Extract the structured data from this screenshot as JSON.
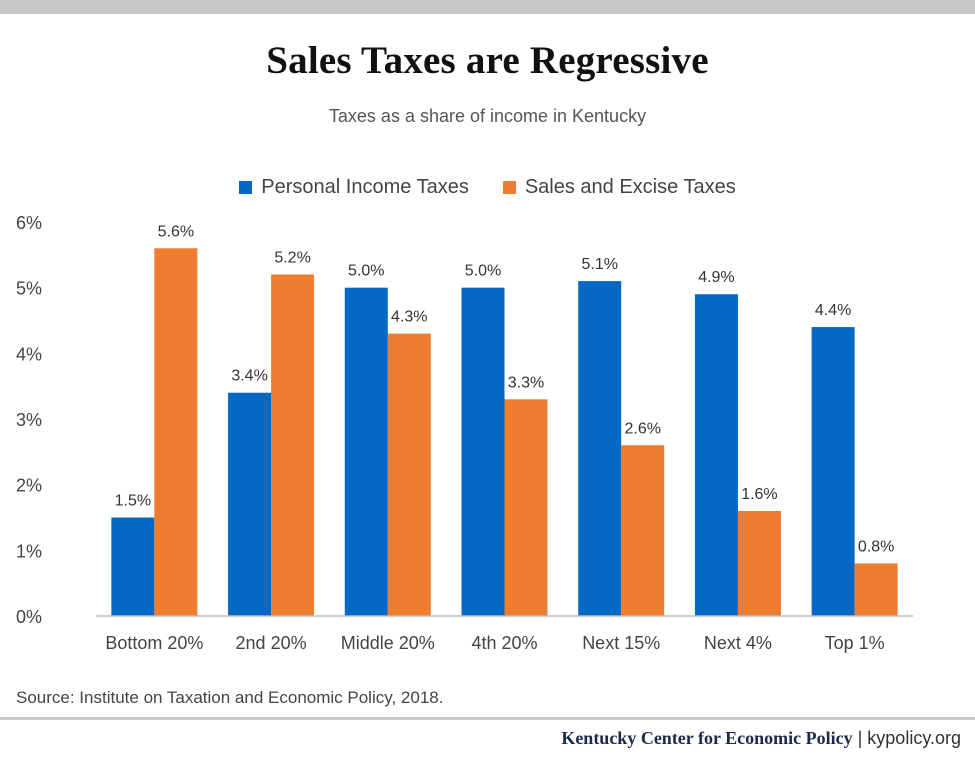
{
  "header": {
    "title": "Sales Taxes are Regressive",
    "subtitle": "Taxes as a share of income in Kentucky"
  },
  "colors": {
    "personal_income": "#0568c4",
    "sales_excise": "#ee7c31",
    "axis_line": "#bbbbbb",
    "tick_text": "#444444"
  },
  "chart_data": {
    "type": "bar",
    "title": "Sales Taxes are Regressive",
    "subtitle": "Taxes as a share of income in Kentucky",
    "categories": [
      "Bottom 20%",
      "2nd 20%",
      "Middle 20%",
      "4th 20%",
      "Next 15%",
      "Next 4%",
      "Top 1%"
    ],
    "series": [
      {
        "name": "Personal Income Taxes",
        "values": [
          1.5,
          3.4,
          5.0,
          5.0,
          5.1,
          4.9,
          4.4
        ],
        "labels": [
          "1.5%",
          "3.4%",
          "5.0%",
          "5.0%",
          "5.1%",
          "4.9%",
          "4.4%"
        ]
      },
      {
        "name": "Sales and Excise Taxes",
        "values": [
          5.6,
          5.2,
          4.3,
          3.3,
          2.6,
          1.6,
          0.8
        ],
        "labels": [
          "5.6%",
          "5.2%",
          "4.3%",
          "3.3%",
          "2.6%",
          "1.6%",
          "0.8%"
        ]
      }
    ],
    "y_ticks": [
      "0%",
      "1%",
      "2%",
      "3%",
      "4%",
      "5%",
      "6%"
    ],
    "ylim": [
      0,
      6
    ],
    "xlabel": "",
    "ylabel": "",
    "grid": false,
    "legend_position": "top-center"
  },
  "source": "Source: Institute on Taxation and Economic Policy, 2018.",
  "footer": {
    "org": "Kentucky Center for Economic Policy",
    "separator": " | ",
    "site": "kypolicy.org"
  }
}
